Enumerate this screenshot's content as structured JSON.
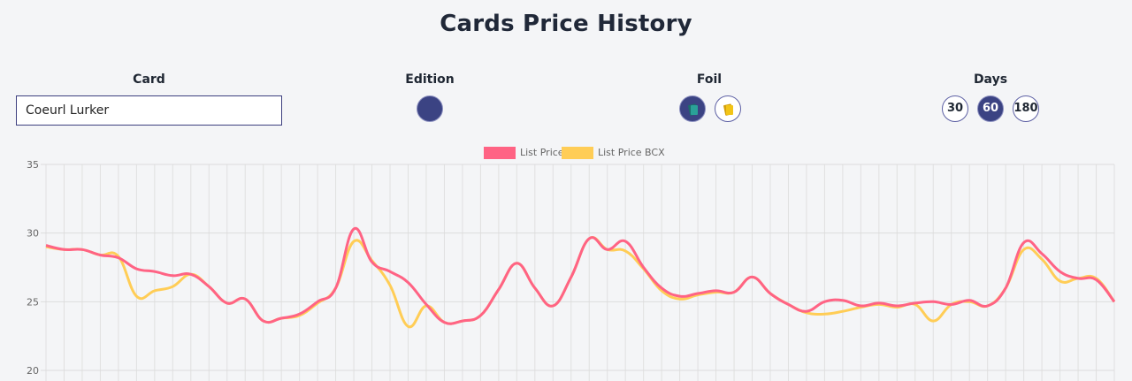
{
  "page": {
    "title": "Cards Price History"
  },
  "filters": {
    "card": {
      "label": "Card",
      "value": "Coeurl Lurker"
    },
    "edition": {
      "label": "Edition",
      "selected_color": "#3b4383"
    },
    "foil": {
      "label": "Foil",
      "options": [
        {
          "name": "regular-foil-icon",
          "selected": true,
          "color": "#2aa198"
        },
        {
          "name": "gold-foil-icon",
          "selected": false,
          "color": "#f2c417"
        }
      ]
    },
    "days": {
      "label": "Days",
      "options": [
        {
          "label": "30",
          "selected": false
        },
        {
          "label": "60",
          "selected": true
        },
        {
          "label": "180",
          "selected": false
        }
      ]
    }
  },
  "colors": {
    "accent": "#3b4383",
    "list_price": "#ff6384",
    "list_price_bcx": "#ffcd56"
  },
  "chart_data": {
    "type": "line",
    "grid": true,
    "legend_position": "top-center",
    "ylim": [
      20,
      35
    ],
    "y_ticks": [
      "35",
      "30",
      "25",
      "20"
    ],
    "point_count": 60,
    "series": [
      {
        "name": "List Price",
        "color": "#ff6384",
        "values": [
          29.1,
          28.8,
          28.8,
          28.4,
          28.2,
          27.4,
          27.2,
          26.9,
          27.0,
          26.1,
          24.9,
          25.2,
          23.6,
          23.8,
          24.1,
          25.0,
          26.0,
          30.3,
          27.9,
          27.2,
          26.4,
          24.8,
          23.5,
          23.6,
          24.0,
          25.9,
          27.8,
          26.0,
          24.7,
          26.8,
          29.6,
          28.8,
          29.4,
          27.5,
          26.0,
          25.4,
          25.6,
          25.8,
          25.7,
          26.8,
          25.6,
          24.8,
          24.3,
          25.0,
          25.1,
          24.7,
          24.9,
          24.7,
          24.9,
          25.0,
          24.8,
          25.1,
          24.7,
          26.0,
          29.3,
          28.5,
          27.2,
          26.7,
          26.6,
          25.0
        ]
      },
      {
        "name": "List Price BCX",
        "color": "#ffcd56",
        "values": [
          29.0,
          28.8,
          28.8,
          28.4,
          28.3,
          25.4,
          25.8,
          26.1,
          27.0,
          26.1,
          24.9,
          25.2,
          23.6,
          23.8,
          24.0,
          24.9,
          26.0,
          29.4,
          28.0,
          26.2,
          23.2,
          24.7,
          23.5,
          23.6,
          24.0,
          25.9,
          27.8,
          26.0,
          24.7,
          26.8,
          29.6,
          28.8,
          28.7,
          27.4,
          25.8,
          25.2,
          25.5,
          25.7,
          25.7,
          26.8,
          25.6,
          24.8,
          24.2,
          24.1,
          24.3,
          24.6,
          24.8,
          24.6,
          24.8,
          23.6,
          24.8,
          25.0,
          24.7,
          26.0,
          28.8,
          28.1,
          26.5,
          26.7,
          26.7,
          25.0
        ]
      }
    ]
  }
}
